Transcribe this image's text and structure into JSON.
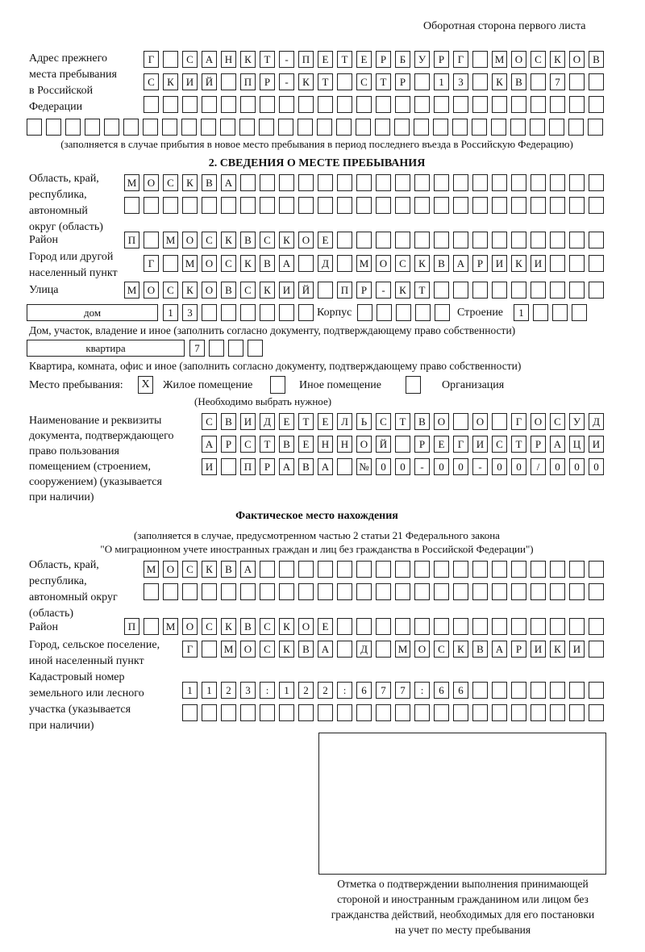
{
  "header": {
    "title": "Оборотная сторона первого листа"
  },
  "prev_address": {
    "label": [
      "Адрес прежнего",
      "места пребывания",
      "в Российской",
      "Федерации"
    ],
    "rows": [
      [
        "Г",
        "",
        "С",
        "А",
        "Н",
        "К",
        "Т",
        "-",
        "П",
        "Е",
        "Т",
        "Е",
        "Р",
        "Б",
        "У",
        "Р",
        "Г",
        "",
        "М",
        "О",
        "С",
        "К",
        "О",
        "В"
      ],
      [
        "С",
        "К",
        "И",
        "Й",
        "",
        "П",
        "Р",
        "-",
        "К",
        "Т",
        "",
        "С",
        "Т",
        "Р",
        "",
        "1",
        "3",
        "",
        "К",
        "В",
        "",
        "7",
        "",
        ""
      ],
      [
        "",
        "",
        "",
        "",
        "",
        "",
        "",
        "",
        "",
        "",
        "",
        "",
        "",
        "",
        "",
        "",
        "",
        "",
        "",
        "",
        "",
        "",
        "",
        ""
      ],
      [
        "",
        "",
        "",
        "",
        "",
        "",
        "",
        "",
        "",
        "",
        "",
        "",
        "",
        "",
        "",
        "",
        "",
        "",
        "",
        "",
        "",
        "",
        "",
        "",
        "",
        "",
        "",
        "",
        "",
        ""
      ]
    ],
    "note": "(заполняется в случае прибытия в новое место пребывания в период последнего въезда в Российскую Федерацию)"
  },
  "section2": {
    "title": "2. СВЕДЕНИЯ О МЕСТЕ ПРЕБЫВАНИЯ",
    "region_label": [
      "Область, край,",
      "республика,",
      "автономный",
      "округ (область)"
    ],
    "region_rows": [
      [
        "М",
        "О",
        "С",
        "К",
        "В",
        "А",
        "",
        "",
        "",
        "",
        "",
        "",
        "",
        "",
        "",
        "",
        "",
        "",
        "",
        "",
        "",
        "",
        "",
        "",
        ""
      ],
      [
        "",
        "",
        "",
        "",
        "",
        "",
        "",
        "",
        "",
        "",
        "",
        "",
        "",
        "",
        "",
        "",
        "",
        "",
        "",
        "",
        "",
        "",
        "",
        "",
        ""
      ]
    ],
    "district_label": "Район",
    "district": [
      "П",
      "",
      "М",
      "О",
      "С",
      "К",
      "В",
      "С",
      "К",
      "О",
      "Е",
      "",
      "",
      "",
      "",
      "",
      "",
      "",
      "",
      "",
      "",
      "",
      "",
      "",
      ""
    ],
    "city_label": [
      "Город или другой",
      "населенный пункт"
    ],
    "city": [
      "Г",
      "",
      "М",
      "О",
      "С",
      "К",
      "В",
      "А",
      "",
      "Д",
      "",
      "М",
      "О",
      "С",
      "К",
      "В",
      "А",
      "Р",
      "И",
      "К",
      "И",
      "",
      "",
      ""
    ],
    "street_label": "Улица",
    "street": [
      "М",
      "О",
      "С",
      "К",
      "О",
      "В",
      "С",
      "К",
      "И",
      "Й",
      "",
      "П",
      "Р",
      "-",
      "К",
      "Т",
      "",
      "",
      "",
      "",
      "",
      "",
      "",
      "",
      ""
    ],
    "house_type": "дом",
    "house": [
      "1",
      "3",
      "",
      "",
      "",
      "",
      "",
      ""
    ],
    "korpus_label": "Корпус",
    "korpus": [
      "",
      "",
      "",
      "",
      ""
    ],
    "building_label": "Строение",
    "building": [
      "1",
      "",
      "",
      ""
    ],
    "house_note": "Дом, участок, владение и иное (заполнить согласно документу, подтверждающему право собственности)",
    "apt_type": "квартира",
    "apt": [
      "7",
      "",
      "",
      ""
    ],
    "apt_note": "Квартира, комната, офис и иное (заполнить согласно документу, подтверждающему право собственности)",
    "stay_label": "Место пребывания:",
    "stay_options": [
      {
        "label": "Жилое помещение",
        "mark": "X"
      },
      {
        "label": "Иное помещение",
        "mark": ""
      },
      {
        "label": "Организация",
        "mark": ""
      }
    ],
    "stay_note": "(Необходимо выбрать нужное)",
    "doc_label": [
      "Наименование и реквизиты",
      "документа, подтверждающего",
      "право пользования",
      "помещением (строением,",
      "сооружением) (указывается",
      "при наличии)"
    ],
    "doc_rows": [
      [
        "С",
        "В",
        "И",
        "Д",
        "Е",
        "Т",
        "Е",
        "Л",
        "Ь",
        "С",
        "Т",
        "В",
        "О",
        "",
        "О",
        "",
        "Г",
        "О",
        "С",
        "У",
        "Д"
      ],
      [
        "А",
        "Р",
        "С",
        "Т",
        "В",
        "Е",
        "Н",
        "Н",
        "О",
        "Й",
        "",
        "Р",
        "Е",
        "Г",
        "И",
        "С",
        "Т",
        "Р",
        "А",
        "Ц",
        "И"
      ],
      [
        "И",
        "",
        "П",
        "Р",
        "А",
        "В",
        "А",
        "",
        "№",
        "0",
        "0",
        "-",
        "0",
        "0",
        "-",
        "0",
        "0",
        "/",
        "0",
        "0",
        "0"
      ]
    ]
  },
  "actual": {
    "title": "Фактическое место нахождения",
    "note": [
      "(заполняется в случае, предусмотренном частью 2 статьи 21 Федерального закона",
      "\"О миграционном учете иностранных граждан и лиц без гражданства в Российской Федерации\")"
    ],
    "region_label": [
      "Область, край,",
      "республика,",
      "автономный округ",
      "(область)"
    ],
    "region_rows": [
      [
        "М",
        "О",
        "С",
        "К",
        "В",
        "А",
        "",
        "",
        "",
        "",
        "",
        "",
        "",
        "",
        "",
        "",
        "",
        "",
        "",
        "",
        "",
        "",
        "",
        ""
      ],
      [
        "",
        "",
        "",
        "",
        "",
        "",
        "",
        "",
        "",
        "",
        "",
        "",
        "",
        "",
        "",
        "",
        "",
        "",
        "",
        "",
        "",
        "",
        "",
        ""
      ]
    ],
    "district_label": "Район",
    "district": [
      "П",
      "",
      "М",
      "О",
      "С",
      "К",
      "В",
      "С",
      "К",
      "О",
      "Е",
      "",
      "",
      "",
      "",
      "",
      "",
      "",
      "",
      "",
      "",
      "",
      "",
      "",
      ""
    ],
    "city_label": [
      "Город, сельское поселение,",
      "иной населенный пункт"
    ],
    "city": [
      "Г",
      "",
      "М",
      "О",
      "С",
      "К",
      "В",
      "А",
      "",
      "Д",
      "",
      "М",
      "О",
      "С",
      "К",
      "В",
      "А",
      "Р",
      "И",
      "К",
      "И",
      ""
    ],
    "cadastre_label": [
      "Кадастровый номер",
      "земельного или лесного",
      "участка (указывается",
      "при наличии)"
    ],
    "cadastre_rows": [
      [
        "1",
        "1",
        "2",
        "3",
        ":",
        "1",
        "2",
        "2",
        ":",
        "6",
        "7",
        "7",
        ":",
        "6",
        "6",
        "",
        "",
        "",
        "",
        "",
        "",
        ""
      ],
      [
        "",
        "",
        "",
        "",
        "",
        "",
        "",
        "",
        "",
        "",
        "",
        "",
        "",
        "",
        "",
        "",
        "",
        "",
        "",
        "",
        "",
        ""
      ]
    ],
    "confirm_caption": [
      "Отметка о подтверждении выполнения принимающей",
      "стороной и иностранным гражданином или лицом без",
      "гражданства действий, необходимых для его постановки",
      "на учет по месту пребывания"
    ]
  }
}
